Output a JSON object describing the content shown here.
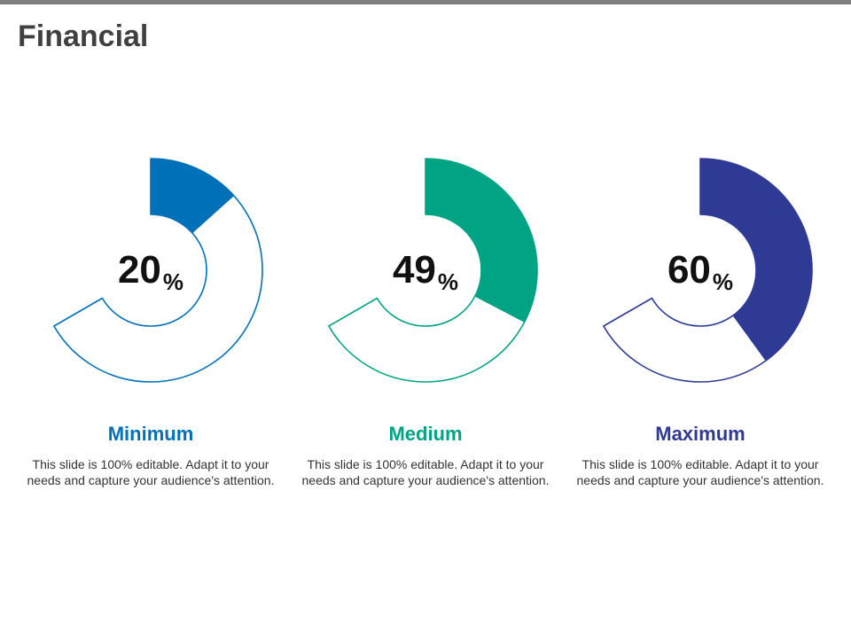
{
  "title": "Financial",
  "chart_data": {
    "type": "donut",
    "unit": "%",
    "charts": [
      {
        "label": "Minimum",
        "value": 20,
        "color": "#0070b8",
        "description": "This slide is 100% editable. Adapt it to your needs and capture your audience's attention."
      },
      {
        "label": "Medium",
        "value": 49,
        "color": "#00a384",
        "description": "This slide is 100% editable. Adapt it to your needs and capture your audience's attention."
      },
      {
        "label": "Maximum",
        "value": 60,
        "color": "#2e3a94",
        "description": "This slide is 100% editable. Adapt it to your needs and capture your audience's attention."
      }
    ]
  }
}
